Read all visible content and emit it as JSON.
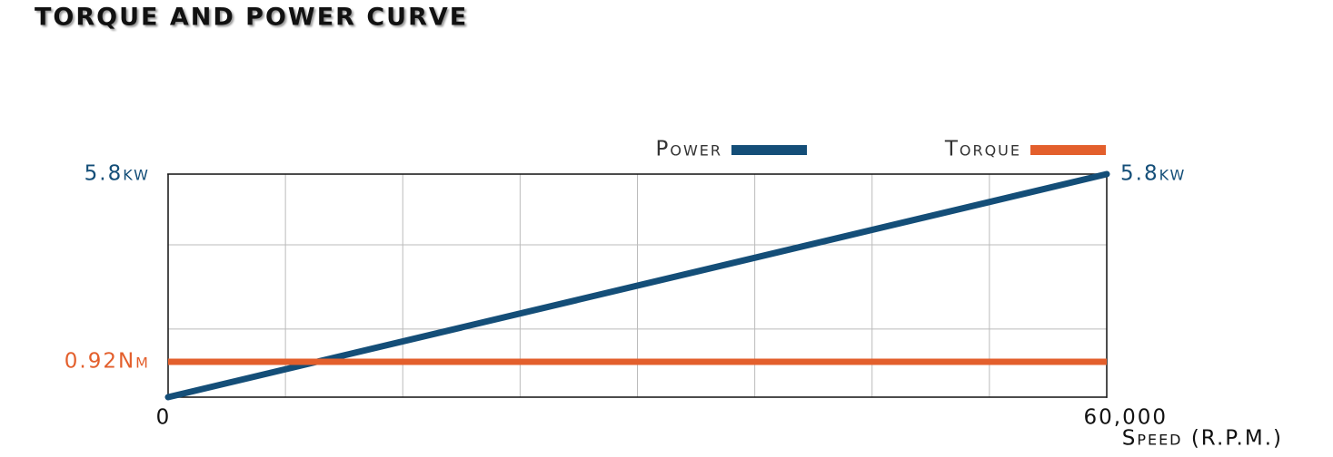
{
  "chart_data": {
    "type": "line",
    "title": "TORQUE AND POWER CURVE",
    "x_label": "Speed (R.P.M.)",
    "x": [
      0,
      60000
    ],
    "series": [
      {
        "name": "Power",
        "color": "#144e78",
        "values": [
          0,
          5.8
        ],
        "value_labels": [
          null,
          "5.8kw"
        ]
      },
      {
        "name": "Torque",
        "color": "#e35f2c",
        "values": [
          0.92,
          0.92
        ],
        "value_labels": [
          "0.92Nm",
          null
        ]
      }
    ],
    "xlim": [
      0,
      60000
    ],
    "xticks": [
      0,
      {
        "value": 60000,
        "label": "60,000"
      }
    ],
    "ylim": [
      0,
      5.8
    ],
    "yticks": [
      {
        "value": 5.8,
        "label": "5.8kw"
      }
    ],
    "xgrid": [
      7500,
      15000,
      22500,
      30000,
      37500,
      45000,
      52500
    ],
    "ygrid": [
      1.77,
      3.96
    ],
    "grid": true,
    "legend": "top-right"
  }
}
